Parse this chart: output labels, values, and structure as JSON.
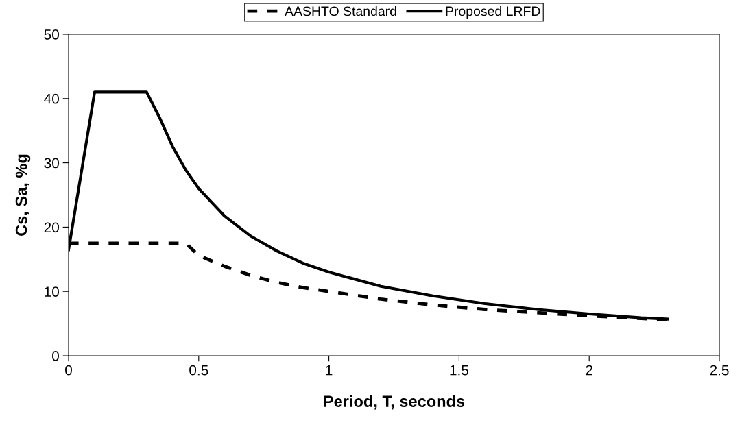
{
  "chart_data": {
    "type": "line",
    "xlabel": "Period, T, seconds",
    "ylabel": "Cs, Sa, %g",
    "xlim": [
      0,
      2.5
    ],
    "xticks": [
      0,
      0.5,
      1,
      1.5,
      2,
      2.5
    ],
    "ylim": [
      0,
      50
    ],
    "yticks": [
      0,
      10,
      20,
      30,
      40,
      50
    ],
    "grid": false,
    "legend": "top",
    "marker": "none",
    "series": [
      {
        "name": "AASHTO Standard",
        "color": "#000000",
        "line_style": "dashed",
        "x": [
          0,
          0.45,
          0.5,
          0.6,
          0.7,
          0.8,
          0.9,
          1.0,
          1.2,
          1.4,
          1.6,
          1.8,
          2.0,
          2.2,
          2.3
        ],
        "values": [
          17.5,
          17.5,
          15.6,
          13.9,
          12.5,
          11.4,
          10.6,
          10.0,
          8.8,
          7.9,
          7.2,
          6.7,
          6.2,
          5.8,
          5.6
        ]
      },
      {
        "name": "Proposed LRFD",
        "color": "#000000",
        "line_style": "solid",
        "x": [
          0,
          0.1,
          0.3,
          0.35,
          0.4,
          0.45,
          0.5,
          0.6,
          0.7,
          0.8,
          0.9,
          1.0,
          1.2,
          1.4,
          1.6,
          1.8,
          2.0,
          2.2,
          2.3
        ],
        "values": [
          16.5,
          41,
          41,
          37,
          32.5,
          28.9,
          26,
          21.7,
          18.6,
          16.3,
          14.4,
          13,
          10.8,
          9.3,
          8.1,
          7.2,
          6.5,
          5.9,
          5.7
        ]
      }
    ]
  }
}
